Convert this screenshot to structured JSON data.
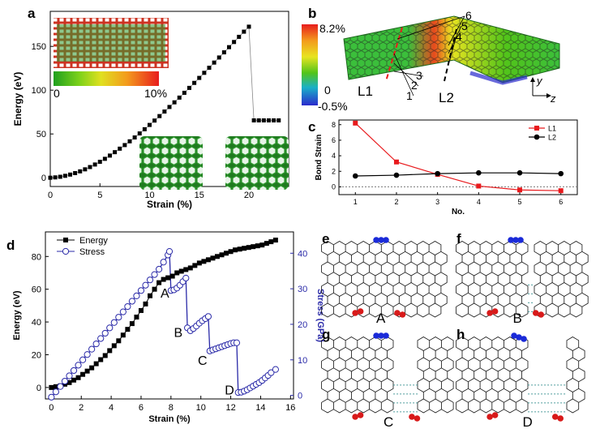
{
  "figure": {
    "panel_labels": [
      "a",
      "b",
      "c",
      "d",
      "e",
      "f",
      "g",
      "h"
    ]
  },
  "chart_data": [
    {
      "panel": "a",
      "type": "scatter",
      "xlabel": "Strain (%)",
      "ylabel": "Energy (eV)",
      "xlim": [
        0,
        24
      ],
      "ylim": [
        -10,
        190
      ],
      "xticks": [
        0,
        5,
        10,
        15,
        20
      ],
      "yticks": [
        0,
        50,
        100,
        150
      ],
      "marker": "square",
      "color": "#000000",
      "x": [
        0,
        0.5,
        1,
        1.5,
        2,
        2.5,
        3,
        3.5,
        4,
        4.5,
        5,
        5.5,
        6,
        6.5,
        7,
        7.5,
        8,
        8.5,
        9,
        9.5,
        10,
        10.5,
        11,
        11.5,
        12,
        12.5,
        13,
        13.5,
        14,
        14.5,
        15,
        15.5,
        16,
        16.5,
        17,
        17.5,
        18,
        18.5,
        19,
        19.5,
        20,
        20.5,
        21,
        21.5,
        22,
        22.5,
        23
      ],
      "y": [
        0,
        0.4,
        1.1,
        2.2,
        3.6,
        5.3,
        7.3,
        9.6,
        12.2,
        15.1,
        18.2,
        21.6,
        25.3,
        29.2,
        33.2,
        37.3,
        41.6,
        46.0,
        50.6,
        55.4,
        60.3,
        65.3,
        70.4,
        75.6,
        80.8,
        86.1,
        91.5,
        97.0,
        102.6,
        108.3,
        114.0,
        119.8,
        125.6,
        131.5,
        137.3,
        143.2,
        149.1,
        155.0,
        160.9,
        166.8,
        172.5,
        65.5,
        65.5,
        65.5,
        65.5,
        65.5,
        65.5
      ],
      "colorbar": {
        "min_label": "0",
        "max_label": "10%"
      }
    },
    {
      "panel": "b",
      "type": "other",
      "colorbar": {
        "max_label": "8.2%",
        "mid_label": "0",
        "min_label": "-0.5%"
      },
      "annotations": [
        "1",
        "2",
        "3",
        "4",
        "5",
        "6",
        "L1",
        "L2"
      ],
      "axes": {
        "vertical": "y",
        "horizontal": "z"
      }
    },
    {
      "panel": "c",
      "type": "line",
      "xlabel": "No.",
      "ylabel": "Bond Strain",
      "xlim": [
        0.6,
        6.4
      ],
      "ylim": [
        -1,
        8.6
      ],
      "xticks": [
        1,
        2,
        3,
        4,
        5,
        6
      ],
      "yticks": [
        0,
        2,
        4,
        6,
        8
      ],
      "legend_position": "top-right",
      "categories": [
        1,
        2,
        3,
        4,
        5,
        6
      ],
      "series": [
        {
          "name": "L1",
          "color": "#e8191c",
          "marker": "square",
          "values": [
            8.2,
            3.2,
            1.6,
            0.1,
            -0.4,
            -0.5
          ]
        },
        {
          "name": "L2",
          "color": "#000000",
          "marker": "circle",
          "values": [
            1.4,
            1.5,
            1.7,
            1.8,
            1.8,
            1.7
          ]
        }
      ]
    },
    {
      "panel": "d",
      "type": "line",
      "xlabel": "Strain (%)",
      "ylabel": "Energy (eV)",
      "ylabel_right": "Stress (GPa)",
      "xlim": [
        -0.4,
        16.2
      ],
      "ylim": [
        -7,
        95
      ],
      "ylim_right": [
        -1,
        46
      ],
      "xticks": [
        0,
        2,
        4,
        6,
        8,
        10,
        12,
        14,
        16
      ],
      "yticks": [
        0,
        20,
        40,
        60,
        80
      ],
      "yticks_right": [
        0,
        10,
        20,
        30,
        40
      ],
      "legend_position": "top-left",
      "annotations": [
        "A",
        "B",
        "C",
        "D"
      ],
      "series": [
        {
          "name": "Energy",
          "axis": "left",
          "color": "#000000",
          "marker": "square",
          "x": [
            0,
            0.3,
            0.6,
            0.9,
            1.2,
            1.5,
            1.8,
            2.1,
            2.4,
            2.7,
            3,
            3.3,
            3.6,
            3.9,
            4.2,
            4.5,
            4.8,
            5.1,
            5.4,
            5.7,
            6,
            6.3,
            6.6,
            6.9,
            7.2,
            7.5,
            7.8,
            8.1,
            8.4,
            8.7,
            9,
            9.3,
            9.6,
            9.9,
            10.2,
            10.5,
            10.8,
            11.1,
            11.4,
            11.7,
            12,
            12.3,
            12.6,
            12.9,
            13.2,
            13.5,
            13.8,
            14.1,
            14.4,
            14.7,
            15
          ],
          "y": [
            0,
            0.5,
            1,
            2,
            3,
            4.5,
            6,
            8,
            10,
            12,
            14.5,
            17,
            19.5,
            22.5,
            25.5,
            28.5,
            32,
            35.5,
            39,
            43,
            47,
            51,
            56,
            60,
            64,
            66,
            67,
            68,
            70,
            71,
            72,
            73,
            74.5,
            76,
            77,
            78,
            79,
            80,
            81,
            82,
            83,
            84,
            84.5,
            85,
            85.5,
            86,
            86.5,
            87,
            88,
            89,
            90
          ]
        },
        {
          "name": "Stress",
          "axis": "right",
          "color": "#2a2aa8",
          "marker": "open-circle",
          "x": [
            0,
            0.3,
            0.6,
            0.9,
            1.2,
            1.5,
            1.8,
            2.1,
            2.4,
            2.7,
            3,
            3.3,
            3.6,
            3.9,
            4.2,
            4.5,
            4.8,
            5.1,
            5.4,
            5.7,
            6,
            6.3,
            6.6,
            6.9,
            7.2,
            7.5,
            7.8,
            7.9,
            8.0,
            8.2,
            8.4,
            8.6,
            8.8,
            9.0,
            9.1,
            9.3,
            9.5,
            9.7,
            9.9,
            10.1,
            10.3,
            10.5,
            10.6,
            10.8,
            11.0,
            11.2,
            11.4,
            11.6,
            11.8,
            12.0,
            12.2,
            12.4,
            12.5,
            12.7,
            12.9,
            13.1,
            13.3,
            13.5,
            13.7,
            13.9,
            14.1,
            14.3,
            14.5,
            14.7,
            15.0
          ],
          "y": [
            -0.5,
            1.0,
            2.5,
            4.0,
            5.5,
            7.0,
            8.5,
            10.0,
            11.5,
            13.0,
            14.5,
            16.0,
            17.5,
            19.0,
            20.5,
            22.0,
            23.5,
            25.0,
            26.5,
            28.0,
            29.5,
            31.0,
            32.5,
            34.0,
            35.5,
            37.5,
            39.5,
            40.5,
            29.5,
            29.7,
            30.2,
            31.0,
            32.0,
            33.0,
            19.0,
            18.2,
            18.8,
            19.5,
            20.3,
            21.0,
            21.6,
            22.2,
            12.5,
            12.8,
            13.1,
            13.4,
            13.7,
            14.0,
            14.3,
            14.6,
            14.8,
            14.8,
            0.8,
            0.9,
            1.2,
            1.6,
            2.1,
            2.6,
            3.1,
            3.6,
            4.2,
            4.9,
            5.6,
            6.4,
            7.3
          ]
        }
      ]
    },
    {
      "panel": "e-h",
      "type": "other",
      "state_labels": [
        "A",
        "B",
        "C",
        "D"
      ]
    }
  ]
}
